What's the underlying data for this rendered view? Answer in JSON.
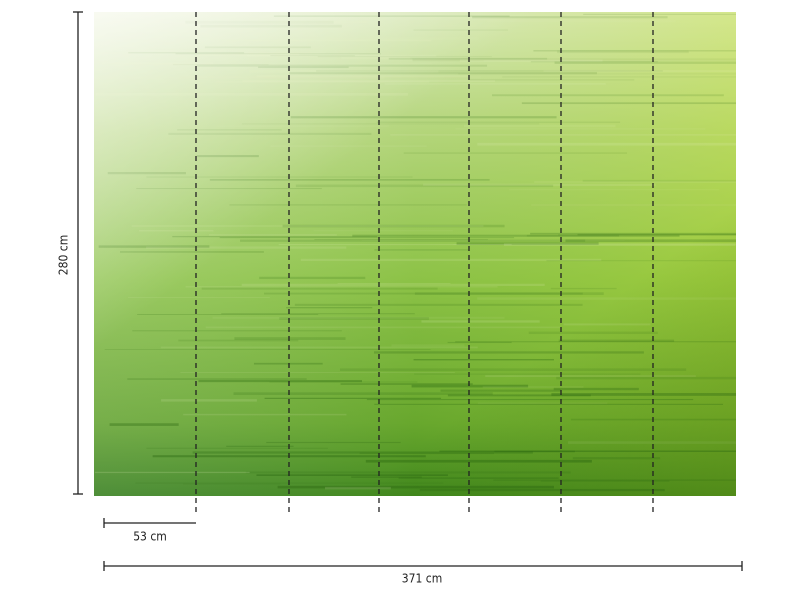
{
  "dimensions": {
    "height": "280 cm",
    "panel_width": "53 cm",
    "total_width": "371 cm"
  }
}
